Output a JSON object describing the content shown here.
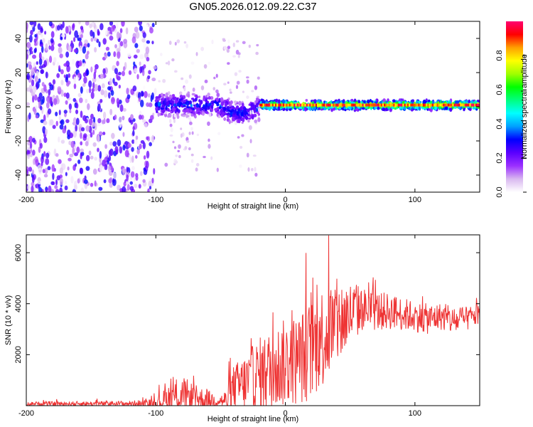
{
  "title": "GN05.2026.012.09.22.C37",
  "chart_data": [
    {
      "type": "heatmap",
      "title": "GN05.2026.012.09.22.C37",
      "xlabel": "Height of straight line (km)",
      "ylabel": "Frequency (Hz)",
      "xlim": [
        -200,
        150
      ],
      "ylim": [
        -50,
        50
      ],
      "xticks": [
        -200,
        -100,
        0,
        100
      ],
      "yticks": [
        -40,
        -20,
        0,
        20,
        40
      ],
      "colorbar": {
        "label": "Normalized spectral amplitude",
        "range": [
          0,
          1
        ],
        "ticks": [
          "0.0",
          "0.2",
          "0.4",
          "0.6",
          "0.8"
        ],
        "colormap": [
          "#ffffff",
          "#d9b8f0",
          "#9b30ff",
          "#5a00ff",
          "#0000ff",
          "#00a0ff",
          "#00ffff",
          "#00ff80",
          "#00ff00",
          "#a0ff00",
          "#ffff00",
          "#ffa000",
          "#ff0000",
          "#ff0070"
        ]
      },
      "description_regions": [
        {
          "x_range": [
            -200,
            -100
          ],
          "freq_spread": 50,
          "amplitude": 0.15
        },
        {
          "x_range": [
            -100,
            -20
          ],
          "freq_spread": 8,
          "amplitude": 0.35
        },
        {
          "x_range": [
            -20,
            150
          ],
          "freq_spread": 3,
          "amplitude": 0.85
        }
      ]
    },
    {
      "type": "line",
      "xlabel": "Height of straight line (km)",
      "ylabel": "SNR (10 * v/v)",
      "xlim": [
        -200,
        150
      ],
      "ylim": [
        0,
        6700
      ],
      "xticks": [
        -200,
        -100,
        0,
        100
      ],
      "yticks": [
        2000,
        4000,
        6000
      ],
      "series": [
        {
          "name": "SNR",
          "color": "#ee3333",
          "envelope": {
            "x": [
              -200,
              -120,
              -100,
              -90,
              -80,
              -70,
              -60,
              -50,
              -45,
              -40,
              -30,
              -20,
              -10,
              0,
              10,
              20,
              30,
              40,
              50,
              60,
              70,
              80,
              90,
              100,
              110,
              120,
              130,
              140,
              150
            ],
            "base": [
              80,
              80,
              100,
              300,
              400,
              300,
              200,
              200,
              200,
              700,
              900,
              1200,
              1400,
              1700,
              1800,
              2200,
              2800,
              3200,
              3600,
              3800,
              3700,
              3700,
              3600,
              3500,
              3400,
              3500,
              3300,
              3400,
              3600
            ],
            "amplitude": [
              120,
              180,
              300,
              900,
              1300,
              900,
              700,
              400,
              800,
              1500,
              2000,
              2500,
              2700,
              2900,
              3000,
              3300,
              3400,
              3000,
              2200,
              1400,
              1300,
              1200,
              1100,
              1000,
              1000,
              900,
              900,
              800,
              700
            ]
          }
        }
      ]
    }
  ]
}
